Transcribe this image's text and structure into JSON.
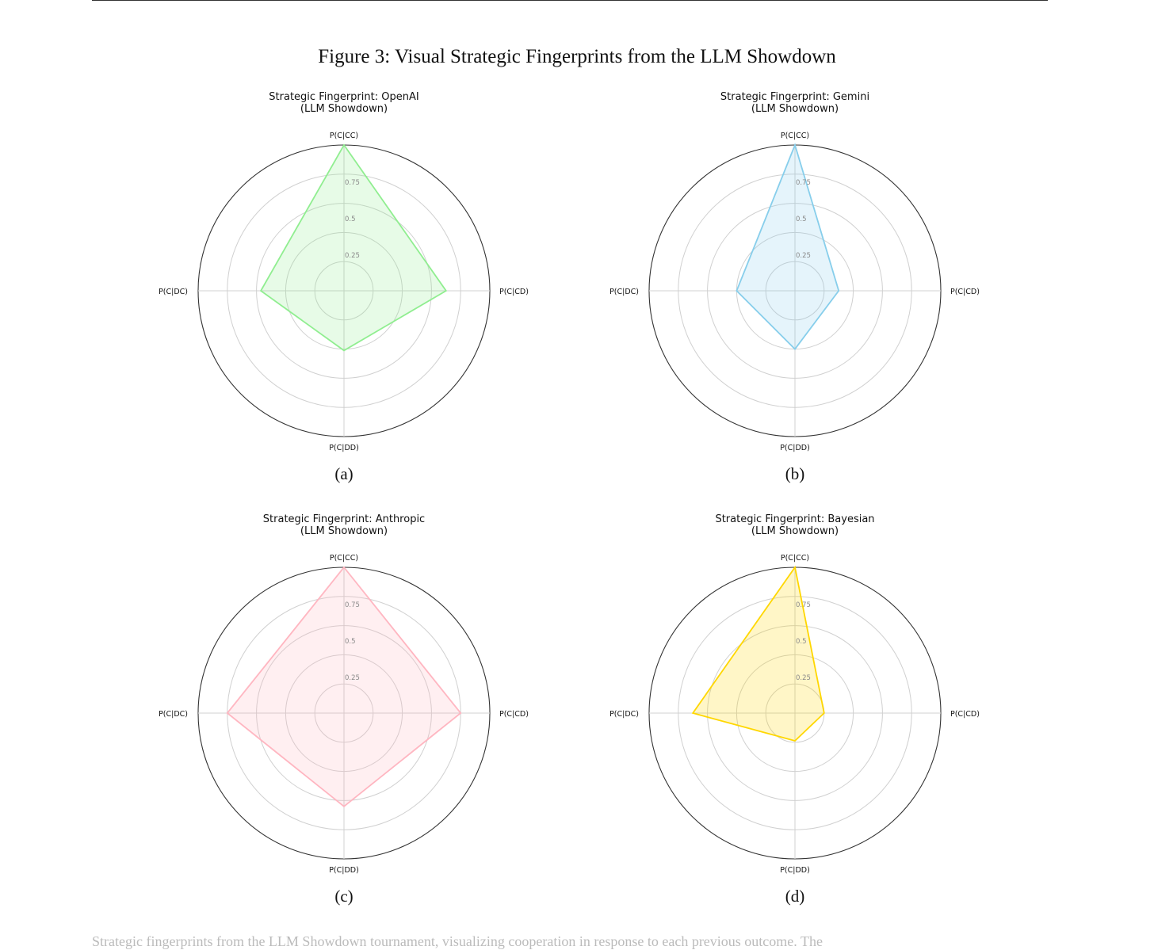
{
  "figure": {
    "caption": "Figure 3: Visual Strategic Fingerprints from the LLM Showdown"
  },
  "chart_data": [
    {
      "type": "radar",
      "subcaption": "(a)",
      "title": "Strategic Fingerprint: OpenAI",
      "subtitle": "(LLM Showdown)",
      "axes": [
        "P(C|CC)",
        "P(C|CD)",
        "P(C|DD)",
        "P(C|DC)"
      ],
      "tick_labels": [
        "0.25",
        "0.5",
        "0.75"
      ],
      "rlim": [
        0,
        1
      ],
      "values": [
        1.0,
        0.7,
        0.41,
        0.57
      ],
      "color": "#90ee90"
    },
    {
      "type": "radar",
      "subcaption": "(b)",
      "title": "Strategic Fingerprint: Gemini",
      "subtitle": "(LLM Showdown)",
      "axes": [
        "P(C|CC)",
        "P(C|CD)",
        "P(C|DD)",
        "P(C|DC)"
      ],
      "tick_labels": [
        "0.25",
        "0.5",
        "0.75"
      ],
      "rlim": [
        0,
        1
      ],
      "values": [
        1.0,
        0.3,
        0.4,
        0.4
      ],
      "color": "#87ceeb"
    },
    {
      "type": "radar",
      "subcaption": "(c)",
      "title": "Strategic Fingerprint: Anthropic",
      "subtitle": "(LLM Showdown)",
      "axes": [
        "P(C|CC)",
        "P(C|CD)",
        "P(C|DD)",
        "P(C|DC)"
      ],
      "tick_labels": [
        "0.25",
        "0.5",
        "0.75"
      ],
      "rlim": [
        0,
        1
      ],
      "values": [
        1.0,
        0.8,
        0.64,
        0.8
      ],
      "color": "#ffb6c1"
    },
    {
      "type": "radar",
      "subcaption": "(d)",
      "title": "Strategic Fingerprint: Bayesian",
      "subtitle": "(LLM Showdown)",
      "axes": [
        "P(C|CC)",
        "P(C|CD)",
        "P(C|DD)",
        "P(C|DC)"
      ],
      "tick_labels": [
        "0.25",
        "0.5",
        "0.75"
      ],
      "rlim": [
        0,
        1
      ],
      "values": [
        1.0,
        0.2,
        0.19,
        0.7
      ],
      "color": "#ffd700"
    }
  ],
  "footer": {
    "text": "Strategic fingerprints from the LLM Showdown tournament, visualizing cooperation in response to each previous outcome. The"
  }
}
